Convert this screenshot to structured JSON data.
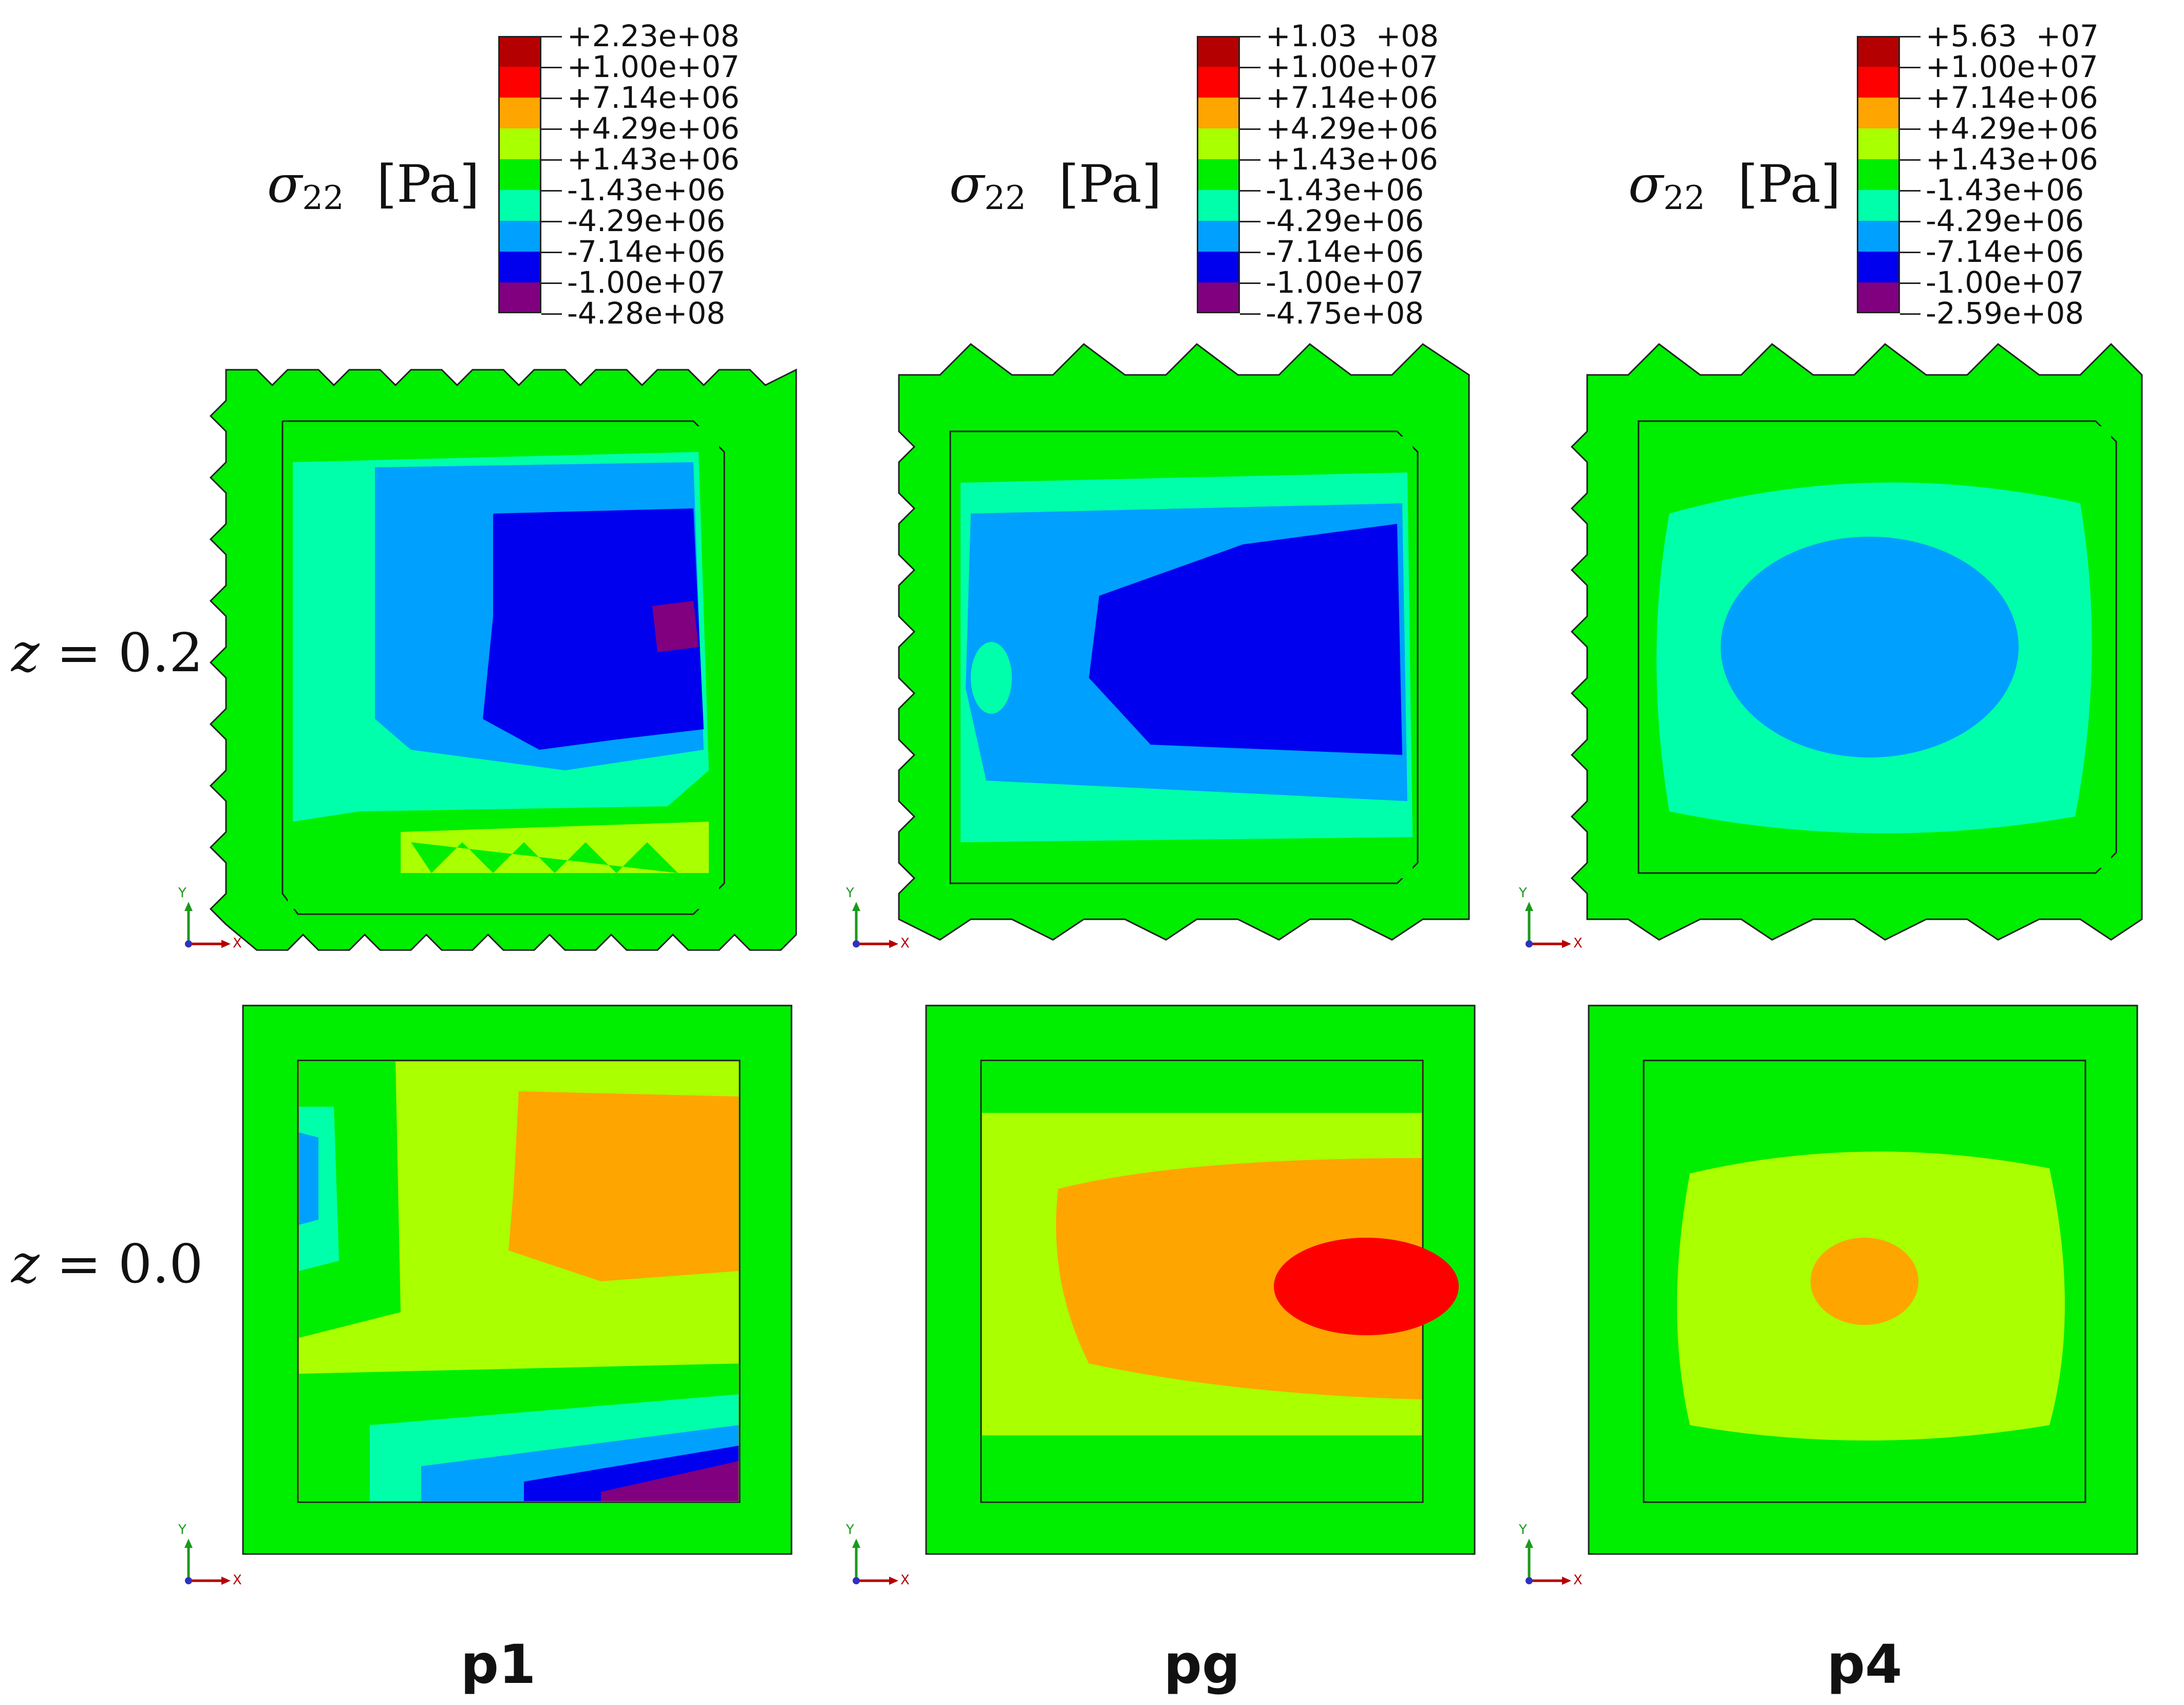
{
  "colors": {
    "bands": [
      "#b40000",
      "#ff0000",
      "#ffa500",
      "#aaff00",
      "#00ee00",
      "#00ffaa",
      "#00a0ff",
      "#0000ee",
      "#800080"
    ],
    "border": "#222222"
  },
  "quantity": {
    "symbol": "σ",
    "subscript": "22",
    "unit": "[Pa]"
  },
  "legends": [
    {
      "labels": [
        "+2.23e+08",
        "+1.00e+07",
        "+7.14e+06",
        "+4.29e+06",
        "+1.43e+06",
        "-1.43e+06",
        "-4.29e+06",
        "-7.14e+06",
        "-1.00e+07",
        "-4.28e+08"
      ]
    },
    {
      "labels": [
        "+1.03  +08",
        "+1.00e+07",
        "+7.14e+06",
        "+4.29e+06",
        "+1.43e+06",
        "-1.43e+06",
        "-4.29e+06",
        "-7.14e+06",
        "-1.00e+07",
        "-4.75e+08"
      ]
    },
    {
      "labels": [
        "+5.63  +07",
        "+1.00e+07",
        "+7.14e+06",
        "+4.29e+06",
        "+1.43e+06",
        "-1.43e+06",
        "-4.29e+06",
        "-7.14e+06",
        "-1.00e+07",
        "-2.59e+08"
      ]
    }
  ],
  "rows": [
    {
      "var": "z",
      "eq": " = 0.2"
    },
    {
      "var": "z",
      "eq": " = 0.0"
    }
  ],
  "columns": [
    "p1",
    "pg",
    "p4"
  ],
  "axis_triad": {
    "y": "Y",
    "x": "X"
  }
}
